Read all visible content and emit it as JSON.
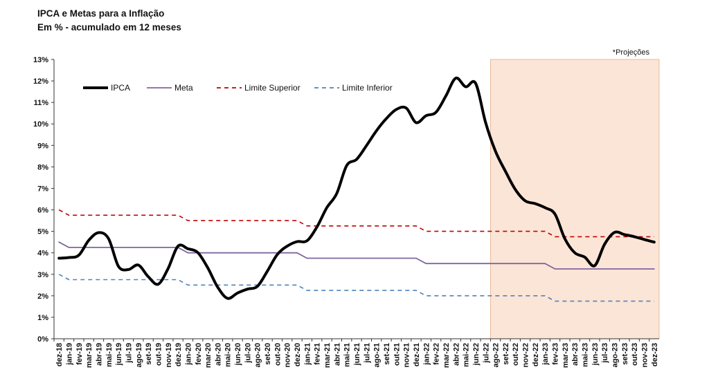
{
  "title": "IPCA e Metas para a Inflação",
  "subtitle": "Em % - acumulado  em 12 meses",
  "chart_data": {
    "type": "line",
    "title": "IPCA e Metas para a Inflação",
    "subtitle": "Em % - acumulado  em 12 meses",
    "annotation": "*Projeções",
    "projection_start": "ago-22",
    "projection_color": "#fbe5d6",
    "ylim": [
      0,
      13
    ],
    "y_ticks": [
      "0%",
      "1%",
      "2%",
      "3%",
      "4%",
      "5%",
      "6%",
      "7%",
      "8%",
      "9%",
      "10%",
      "11%",
      "12%",
      "13%"
    ],
    "legend_position": "top-left",
    "categories": [
      "dez-18",
      "jan-19",
      "fev-19",
      "mar-19",
      "abr-19",
      "mai-19",
      "jun-19",
      "jul-19",
      "ago-19",
      "set-19",
      "out-19",
      "nov-19",
      "dez-19",
      "jan-20",
      "fev-20",
      "mar-20",
      "abr-20",
      "mai-20",
      "jun-20",
      "jul-20",
      "ago-20",
      "set-20",
      "out-20",
      "nov-20",
      "dez-20",
      "jan-21",
      "fev-21",
      "mar-21",
      "abr-21",
      "mai-21",
      "jun-21",
      "jul-21",
      "ago-21",
      "set-21",
      "out-21",
      "nov-21",
      "dez-21",
      "jan-22",
      "fev-22",
      "mar-22",
      "abr-22",
      "mai-22",
      "jun-22",
      "jul-22",
      "ago-22",
      "set-22",
      "out-22",
      "nov-22",
      "dez-22",
      "jan-23",
      "fev-23",
      "mar-23",
      "abr-23",
      "mai-23",
      "jun-23",
      "jul-23",
      "ago-23",
      "set-23",
      "out-23",
      "nov-23",
      "dez-23"
    ],
    "series": [
      {
        "name": "IPCA",
        "color": "#000000",
        "dash": "solid",
        "values": [
          3.75,
          3.78,
          3.89,
          4.58,
          4.94,
          4.66,
          3.37,
          3.22,
          3.43,
          2.89,
          2.54,
          3.27,
          4.31,
          4.19,
          4.01,
          3.3,
          2.4,
          1.88,
          2.13,
          2.31,
          2.44,
          3.14,
          3.92,
          4.31,
          4.52,
          4.56,
          5.2,
          6.1,
          6.76,
          8.06,
          8.35,
          8.99,
          9.68,
          10.25,
          10.67,
          10.74,
          10.06,
          10.38,
          10.54,
          11.3,
          12.13,
          11.73,
          11.89,
          10.07,
          8.73,
          7.8,
          6.95,
          6.42,
          6.29,
          6.1,
          5.8,
          4.65,
          4.0,
          3.8,
          3.4,
          4.4,
          4.95,
          4.85,
          4.75,
          4.62,
          4.5
        ]
      },
      {
        "name": "Meta",
        "color": "#8064a2",
        "dash": "solid",
        "values": [
          4.5,
          4.25,
          4.25,
          4.25,
          4.25,
          4.25,
          4.25,
          4.25,
          4.25,
          4.25,
          4.25,
          4.25,
          4.25,
          4.0,
          4.0,
          4.0,
          4.0,
          4.0,
          4.0,
          4.0,
          4.0,
          4.0,
          4.0,
          4.0,
          4.0,
          3.75,
          3.75,
          3.75,
          3.75,
          3.75,
          3.75,
          3.75,
          3.75,
          3.75,
          3.75,
          3.75,
          3.75,
          3.5,
          3.5,
          3.5,
          3.5,
          3.5,
          3.5,
          3.5,
          3.5,
          3.5,
          3.5,
          3.5,
          3.5,
          3.5,
          3.25,
          3.25,
          3.25,
          3.25,
          3.25,
          3.25,
          3.25,
          3.25,
          3.25,
          3.25,
          3.25
        ]
      },
      {
        "name": "Limite Superior",
        "color": "#c00000",
        "dash": "dashed",
        "values": [
          6.0,
          5.75,
          5.75,
          5.75,
          5.75,
          5.75,
          5.75,
          5.75,
          5.75,
          5.75,
          5.75,
          5.75,
          5.75,
          5.5,
          5.5,
          5.5,
          5.5,
          5.5,
          5.5,
          5.5,
          5.5,
          5.5,
          5.5,
          5.5,
          5.5,
          5.25,
          5.25,
          5.25,
          5.25,
          5.25,
          5.25,
          5.25,
          5.25,
          5.25,
          5.25,
          5.25,
          5.25,
          5.0,
          5.0,
          5.0,
          5.0,
          5.0,
          5.0,
          5.0,
          5.0,
          5.0,
          5.0,
          5.0,
          5.0,
          5.0,
          4.75,
          4.75,
          4.75,
          4.75,
          4.75,
          4.75,
          4.75,
          4.75,
          4.75,
          4.75,
          4.75
        ]
      },
      {
        "name": "Limite Inferior",
        "color": "#4f81bd",
        "dash": "dashed",
        "values": [
          3.0,
          2.75,
          2.75,
          2.75,
          2.75,
          2.75,
          2.75,
          2.75,
          2.75,
          2.75,
          2.75,
          2.75,
          2.75,
          2.5,
          2.5,
          2.5,
          2.5,
          2.5,
          2.5,
          2.5,
          2.5,
          2.5,
          2.5,
          2.5,
          2.5,
          2.25,
          2.25,
          2.25,
          2.25,
          2.25,
          2.25,
          2.25,
          2.25,
          2.25,
          2.25,
          2.25,
          2.25,
          2.0,
          2.0,
          2.0,
          2.0,
          2.0,
          2.0,
          2.0,
          2.0,
          2.0,
          2.0,
          2.0,
          2.0,
          2.0,
          1.75,
          1.75,
          1.75,
          1.75,
          1.75,
          1.75,
          1.75,
          1.75,
          1.75,
          1.75,
          1.75
        ]
      }
    ]
  }
}
